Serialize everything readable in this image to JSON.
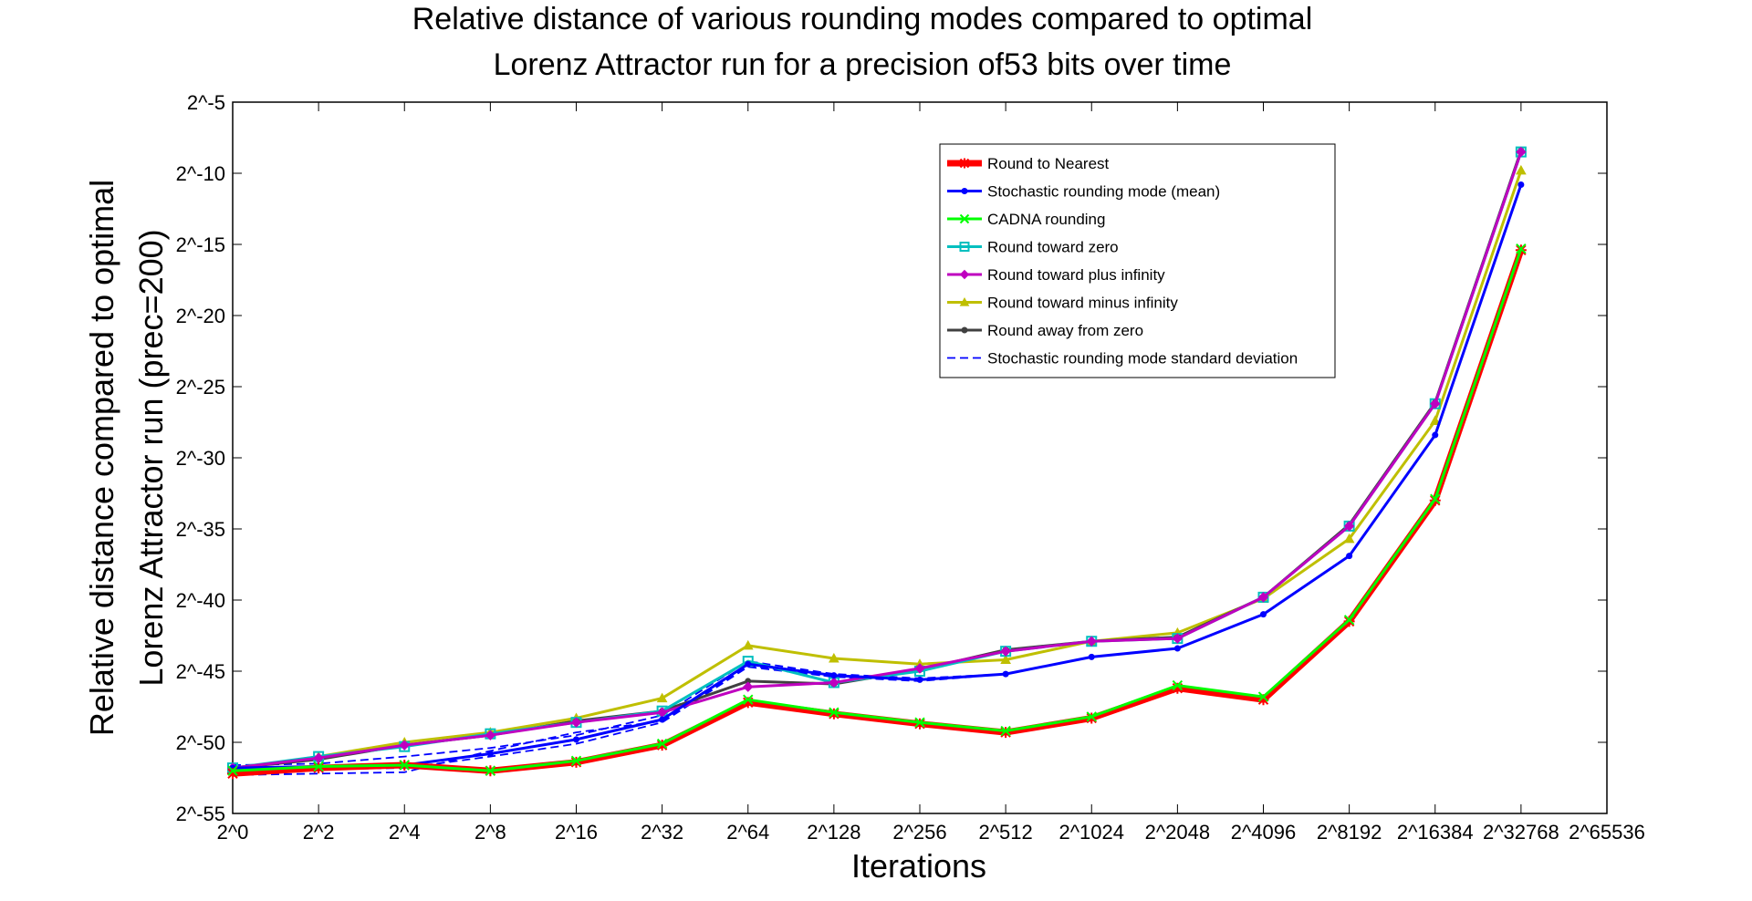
{
  "chart_data": {
    "type": "line",
    "title": "Relative distance of various rounding modes compared to optimal",
    "subtitle": "Lorenz Attractor run for a precision of53 bits over time",
    "xlabel": "Iterations",
    "ylabel": "Relative distance compared to optimal",
    "ylabel2": "Lorenz Attractor run (prec=200)",
    "x_scale": "log2",
    "y_scale": "log2",
    "xlim": [
      0,
      16
    ],
    "ylim": [
      -55,
      -5
    ],
    "grid": false,
    "legend_position": "top-right",
    "x_ticks": [
      {
        "value": 0,
        "label": "2^0"
      },
      {
        "value": 1,
        "label": "2^2"
      },
      {
        "value": 2,
        "label": "2^4"
      },
      {
        "value": 3,
        "label": "2^8"
      },
      {
        "value": 4,
        "label": "2^16"
      },
      {
        "value": 5,
        "label": "2^32"
      },
      {
        "value": 6,
        "label": "2^64"
      },
      {
        "value": 7,
        "label": "2^128"
      },
      {
        "value": 8,
        "label": "2^256"
      },
      {
        "value": 9,
        "label": "2^512"
      },
      {
        "value": 10,
        "label": "2^1024"
      },
      {
        "value": 11,
        "label": "2^2048"
      },
      {
        "value": 12,
        "label": "2^4096"
      },
      {
        "value": 13,
        "label": "2^8192"
      },
      {
        "value": 14,
        "label": "2^16384"
      },
      {
        "value": 15,
        "label": "2^32768"
      },
      {
        "value": 16,
        "label": "2^65536"
      }
    ],
    "y_ticks": [
      {
        "value": -5,
        "label": "2^-5"
      },
      {
        "value": -10,
        "label": "2^-10"
      },
      {
        "value": -15,
        "label": "2^-15"
      },
      {
        "value": -20,
        "label": "2^-20"
      },
      {
        "value": -25,
        "label": "2^-25"
      },
      {
        "value": -30,
        "label": "2^-30"
      },
      {
        "value": -35,
        "label": "2^-35"
      },
      {
        "value": -40,
        "label": "2^-40"
      },
      {
        "value": -45,
        "label": "2^-45"
      },
      {
        "value": -50,
        "label": "2^-50"
      },
      {
        "value": -55,
        "label": "2^-55"
      }
    ],
    "x": [
      0,
      1,
      2,
      3,
      4,
      5,
      6,
      7,
      8,
      9,
      10,
      11,
      12,
      13,
      14,
      15
    ],
    "series": [
      {
        "name": "Round to Nearest",
        "color": "#ff0000",
        "marker": "star",
        "style": "solid",
        "width": "thick",
        "values": [
          -52.2,
          -51.8,
          -51.6,
          -52.0,
          -51.4,
          -50.2,
          -47.2,
          -48.0,
          -48.7,
          -49.3,
          -48.3,
          -46.2,
          -47.0,
          -41.5,
          -33.0,
          -15.4
        ]
      },
      {
        "name": "Stochastic rounding mode (mean)",
        "color": "#0000ff",
        "marker": "dot",
        "style": "solid",
        "width": "normal",
        "values": [
          -51.8,
          -51.7,
          -51.6,
          -50.8,
          -49.8,
          -48.4,
          -44.5,
          -45.3,
          -45.6,
          -45.2,
          -44.0,
          -43.4,
          -41.0,
          -36.9,
          -28.4,
          -10.8
        ]
      },
      {
        "name": "CADNA rounding",
        "color": "#00ff00",
        "marker": "x",
        "style": "solid",
        "width": "normal",
        "values": [
          -52.0,
          -51.7,
          -51.6,
          -52.0,
          -51.3,
          -50.1,
          -47.0,
          -47.9,
          -48.6,
          -49.2,
          -48.2,
          -46.0,
          -46.8,
          -41.4,
          -32.9,
          -15.3
        ]
      },
      {
        "name": "Round toward zero",
        "color": "#00bfbf",
        "marker": "square",
        "style": "solid",
        "width": "normal",
        "values": [
          -51.8,
          -51.0,
          -50.3,
          -49.4,
          -48.6,
          -47.8,
          -44.3,
          -45.8,
          -45.0,
          -43.6,
          -42.9,
          -42.7,
          -39.8,
          -34.8,
          -26.2,
          -8.5
        ]
      },
      {
        "name": "Round toward plus infinity",
        "color": "#bf00bf",
        "marker": "diamond",
        "style": "solid",
        "width": "normal",
        "values": [
          -51.8,
          -51.1,
          -50.2,
          -49.5,
          -48.6,
          -47.9,
          -46.1,
          -45.8,
          -44.8,
          -43.6,
          -42.9,
          -42.7,
          -39.8,
          -34.8,
          -26.2,
          -8.5
        ]
      },
      {
        "name": "Round toward minus infinity",
        "color": "#bfbf00",
        "marker": "triangle",
        "style": "solid",
        "width": "normal",
        "values": [
          -51.9,
          -51.0,
          -50.0,
          -49.3,
          -48.3,
          -46.9,
          -43.2,
          -44.1,
          -44.5,
          -44.2,
          -42.9,
          -42.3,
          -39.9,
          -35.7,
          -27.4,
          -9.8
        ]
      },
      {
        "name": "Round away from zero",
        "color": "#404040",
        "marker": "dot",
        "style": "solid",
        "width": "normal",
        "values": [
          -51.8,
          -51.2,
          -50.2,
          -49.5,
          -48.5,
          -47.8,
          -45.7,
          -45.9,
          -44.9,
          -43.5,
          -42.9,
          -42.6,
          -39.8,
          -34.7,
          -26.1,
          -8.4
        ]
      },
      {
        "name": "Stochastic rounding mode standard deviation",
        "color": "#0000ff",
        "marker": "none",
        "style": "dashed",
        "width": "normal",
        "values": [
          -52.1,
          -51.9,
          -51.8,
          -51.0,
          -50.1,
          -48.6,
          -44.7,
          -45.4,
          -45.7,
          -45.2,
          -44.0,
          -43.4,
          -41.0,
          -36.9,
          -28.4,
          -10.8
        ]
      },
      {
        "name": "",
        "color": "#0000ff",
        "marker": "none",
        "style": "dashed",
        "width": "normal",
        "values": [
          -51.6,
          -51.5,
          -51.0,
          -50.4,
          -49.5,
          -48.1,
          -44.3,
          -45.2,
          -45.5,
          -45.2,
          -44.0,
          -43.4,
          -41.0,
          -36.9,
          -28.4,
          -10.8
        ]
      },
      {
        "name": "",
        "color": "#0000ff",
        "marker": "none",
        "style": "dashed",
        "width": "normal",
        "values": [
          -52.3,
          -52.2,
          -52.1,
          -50.6,
          -49.3,
          -48.5,
          -44.6,
          -45.4,
          -45.6,
          -45.2,
          -44.0,
          -43.4,
          -41.0,
          -36.9,
          -28.4,
          -10.8
        ]
      }
    ]
  }
}
